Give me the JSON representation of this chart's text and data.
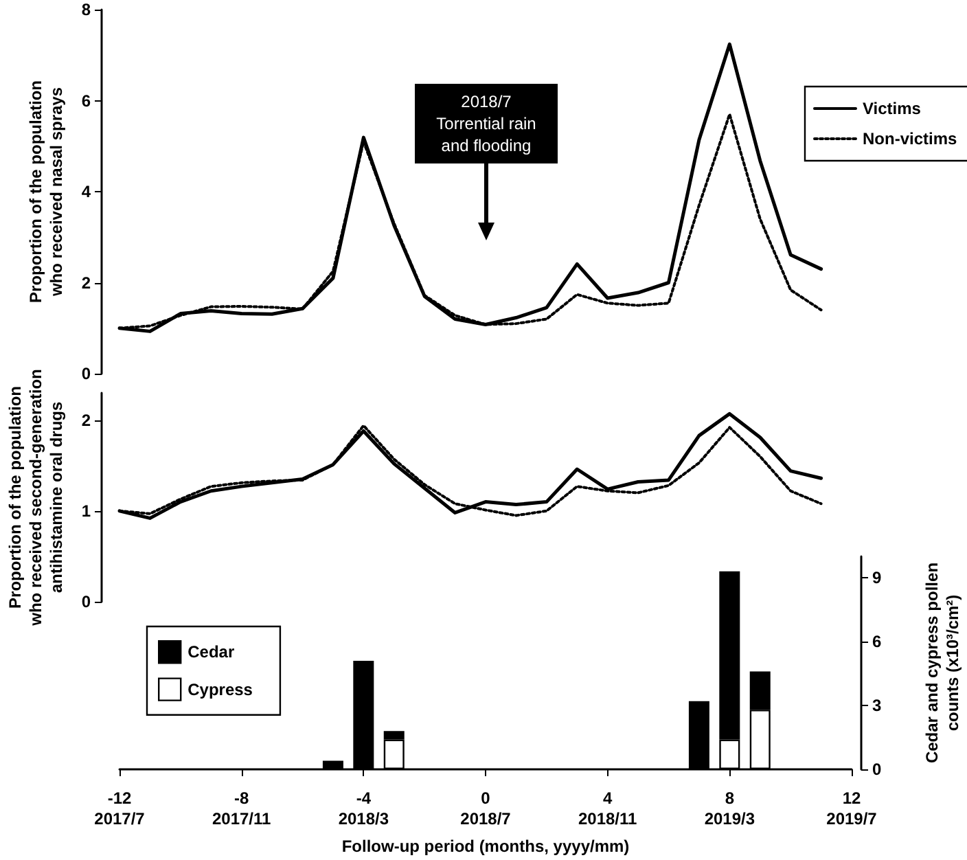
{
  "chart_data": [
    {
      "type": "line",
      "ylabel": "Proportion of the population\nwho received nasal sprays",
      "x": [
        -12,
        -11,
        -10,
        -9,
        -8,
        -7,
        -6,
        -5,
        -4,
        -3,
        -2,
        -1,
        0,
        1,
        2,
        3,
        4,
        5,
        6,
        7,
        8,
        9,
        10,
        11
      ],
      "series": [
        {
          "name": "Victims",
          "color": "#000000",
          "line_style": "solid",
          "values": [
            1.0,
            0.93,
            1.32,
            1.38,
            1.32,
            1.31,
            1.43,
            2.1,
            5.19,
            3.26,
            1.7,
            1.2,
            1.08,
            1.23,
            1.45,
            2.41,
            1.66,
            1.78,
            2.0,
            5.14,
            7.24,
            4.68,
            2.61,
            2.3
          ]
        },
        {
          "name": "Non-victims",
          "color": "#000000",
          "line_style": "dotted",
          "values": [
            1.0,
            1.05,
            1.28,
            1.47,
            1.48,
            1.46,
            1.42,
            2.25,
            5.1,
            3.3,
            1.72,
            1.28,
            1.08,
            1.1,
            1.2,
            1.74,
            1.55,
            1.5,
            1.55,
            3.7,
            5.7,
            3.4,
            1.84,
            1.4
          ]
        }
      ],
      "xlim": [
        -12,
        12
      ],
      "xticks": [
        -12,
        -8,
        -4,
        0,
        4,
        8,
        12
      ],
      "ylim": [
        0,
        8
      ],
      "yticks": [
        0,
        2,
        4,
        6,
        8
      ],
      "tick_labels": "y",
      "grid": false,
      "marker": "none",
      "legend": "top right",
      "annotations": [
        "2018/7\nTorrential rain\nand flooding"
      ]
    },
    {
      "type": "line",
      "ylabel": "Proportion of the population\nwho received second-generation\nantihistamine oral drugs",
      "x": [
        -12,
        -11,
        -10,
        -9,
        -8,
        -7,
        -6,
        -5,
        -4,
        -3,
        -2,
        -1,
        0,
        1,
        2,
        3,
        4,
        5,
        6,
        7,
        8,
        9,
        10,
        11
      ],
      "series": [
        {
          "color": "#000000",
          "line_style": "solid",
          "values": [
            1.0,
            0.92,
            1.1,
            1.22,
            1.27,
            1.31,
            1.35,
            1.51,
            1.88,
            1.52,
            1.25,
            0.98,
            1.1,
            1.07,
            1.1,
            1.46,
            1.24,
            1.32,
            1.34,
            1.83,
            2.07,
            1.81,
            1.44,
            1.36
          ]
        },
        {
          "color": "#000000",
          "line_style": "dotted",
          "values": [
            1.0,
            0.97,
            1.13,
            1.27,
            1.31,
            1.33,
            1.34,
            1.51,
            1.94,
            1.57,
            1.29,
            1.08,
            1.01,
            0.95,
            1.0,
            1.27,
            1.22,
            1.2,
            1.28,
            1.53,
            1.92,
            1.6,
            1.22,
            1.08
          ]
        }
      ],
      "xlim": [
        -12,
        12
      ],
      "xticks": [
        -12,
        -8,
        -4,
        0,
        4,
        8,
        12
      ],
      "ylim": [
        0,
        2.3
      ],
      "yticks": [
        0,
        1,
        2
      ],
      "tick_labels": "y",
      "grid": false,
      "marker": "none",
      "legend": false
    },
    {
      "type": "bar",
      "stacked": true,
      "xlabel": "Follow-up period (months, yyyy/mm)",
      "y2label": "Cedar and cypress pollen\ncounts (x10³/cm²)",
      "x": [
        -5,
        -4,
        -3,
        7,
        8,
        9
      ],
      "series": [
        {
          "name": "Cypress",
          "color": "#ffffff",
          "axis": "y2",
          "values": [
            null,
            null,
            1.4,
            null,
            1.4,
            2.8
          ]
        },
        {
          "name": "Cedar",
          "color": "#000000",
          "axis": "y2",
          "values": [
            0.4,
            5.1,
            0.4,
            3.2,
            7.9,
            1.8
          ]
        }
      ],
      "xlim": [
        -12,
        12
      ],
      "xticks": [
        -12,
        -8,
        -4,
        0,
        4,
        8,
        12
      ],
      "x2lim": [
        "2017-07",
        "2019-07"
      ],
      "x2ticks": [
        {
          "value": "2017-07",
          "label": "2017/7"
        },
        {
          "value": "2017-11",
          "label": "2017/11"
        },
        {
          "value": "2018-03",
          "label": "2018/3"
        },
        {
          "value": "2018-07",
          "label": "2018/7"
        },
        {
          "value": "2018-11",
          "label": "2018/11"
        },
        {
          "value": "2019-03",
          "label": "2019/3"
        },
        {
          "value": "2019-07",
          "label": "2019/7"
        }
      ],
      "y2lim": [
        0,
        10
      ],
      "y2ticks": [
        0,
        3,
        6,
        9
      ],
      "grid": false,
      "legend": "left"
    }
  ]
}
